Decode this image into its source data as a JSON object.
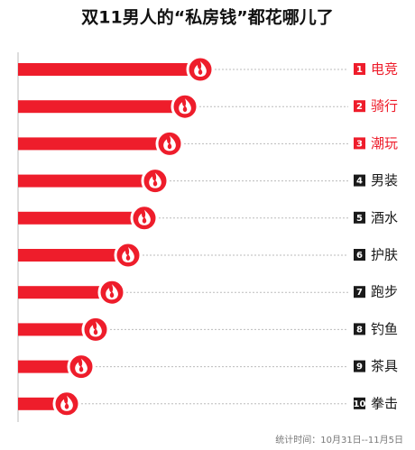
{
  "chart_data": {
    "type": "bar",
    "orientation": "horizontal",
    "title": "双11男人的“私房钱”都花哪儿了",
    "categories": [
      "电竞",
      "骑行",
      "潮玩",
      "男装",
      "酒水",
      "护肤",
      "跑步",
      "钓鱼",
      "茶具",
      "拳击"
    ],
    "ranks": [
      1,
      2,
      3,
      4,
      5,
      6,
      7,
      8,
      9,
      10
    ],
    "values": [
      202,
      185,
      168,
      152,
      140,
      122,
      104,
      86,
      70,
      54
    ],
    "color": "#ee1d2b",
    "rank_colors": [
      "#ee1d2b",
      "#ee1d2b",
      "#ee1d2b",
      "#1a1a1a",
      "#1a1a1a",
      "#1a1a1a",
      "#1a1a1a",
      "#1a1a1a",
      "#1a1a1a",
      "#1a1a1a"
    ],
    "footnote": "统计时间：10月31日--11月5日"
  }
}
